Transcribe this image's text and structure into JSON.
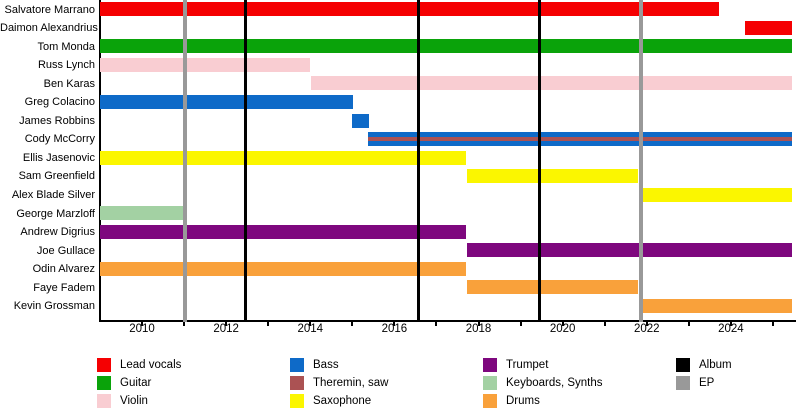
{
  "chart_data": {
    "type": "timeline",
    "description": "Band members timeline (Gantt-style) with instrument color coding and album/EP release lines",
    "x_axis": {
      "min": 2009.0,
      "max": 2025.5,
      "tick_years": [
        2010,
        2011,
        2012,
        2013,
        2014,
        2015,
        2016,
        2017,
        2018,
        2019,
        2020,
        2021,
        2022,
        2023,
        2024,
        2025
      ],
      "label_years": [
        "2010",
        "2012",
        "2014",
        "2016",
        "2018",
        "2020",
        "2022",
        "2024"
      ],
      "grid": false
    },
    "colors": {
      "lead_vocals": "#f50002",
      "guitar": "#0aa30a",
      "violin": "#f9cdd2",
      "bass": "#0e6ac8",
      "theremin_saw": "#ab5253",
      "saxophone": "#fbf600",
      "trumpet": "#7e077e",
      "keyboards_synths": "#a3d1a3",
      "drums": "#f9a13b",
      "album": "#000000",
      "ep": "#999999"
    },
    "members": [
      {
        "name": "Salvatore Marrano",
        "instrument": "Lead vocals",
        "segments": [
          {
            "start": 2009.0,
            "end": 2023.72,
            "colors": [
              "lead_vocals"
            ]
          }
        ]
      },
      {
        "name": "Daimon Alexandrius",
        "instrument": "Lead vocals",
        "segments": [
          {
            "start": 2024.33,
            "end": 2025.45,
            "colors": [
              "lead_vocals"
            ]
          }
        ]
      },
      {
        "name": "Tom Monda",
        "instrument": "Guitar",
        "segments": [
          {
            "start": 2009.0,
            "end": 2025.45,
            "colors": [
              "guitar"
            ]
          }
        ]
      },
      {
        "name": "Russ Lynch",
        "instrument": "Violin",
        "segments": [
          {
            "start": 2009.0,
            "end": 2014.0,
            "colors": [
              "violin"
            ]
          }
        ]
      },
      {
        "name": "Ben Karas",
        "instrument": "Violin",
        "segments": [
          {
            "start": 2014.02,
            "end": 2025.45,
            "colors": [
              "violin"
            ]
          }
        ]
      },
      {
        "name": "Greg Colacino",
        "instrument": "Bass",
        "segments": [
          {
            "start": 2009.0,
            "end": 2015.02,
            "colors": [
              "bass"
            ]
          }
        ]
      },
      {
        "name": "James Robbins",
        "instrument": "Bass",
        "segments": [
          {
            "start": 2015.0,
            "end": 2015.4,
            "colors": [
              "bass"
            ]
          }
        ]
      },
      {
        "name": "Cody McCorry",
        "instrument": "Bass; Theremin, saw",
        "segments": [
          {
            "start": 2015.36,
            "end": 2025.45,
            "colors": [
              "bass",
              "theremin_saw",
              "bass"
            ]
          }
        ]
      },
      {
        "name": "Ellis Jasenovic",
        "instrument": "Saxophone",
        "segments": [
          {
            "start": 2009.0,
            "end": 2017.7,
            "colors": [
              "saxophone"
            ]
          }
        ]
      },
      {
        "name": "Sam Greenfield",
        "instrument": "Saxophone",
        "segments": [
          {
            "start": 2017.73,
            "end": 2021.8,
            "colors": [
              "saxophone"
            ]
          }
        ]
      },
      {
        "name": "Alex Blade Silver",
        "instrument": "Saxophone",
        "segments": [
          {
            "start": 2021.83,
            "end": 2025.45,
            "colors": [
              "saxophone"
            ]
          }
        ]
      },
      {
        "name": "George Marzloff",
        "instrument": "Keyboards, Synths",
        "segments": [
          {
            "start": 2009.0,
            "end": 2011.02,
            "colors": [
              "keyboards_synths"
            ]
          }
        ]
      },
      {
        "name": "Andrew Digrius",
        "instrument": "Trumpet",
        "segments": [
          {
            "start": 2009.0,
            "end": 2017.7,
            "colors": [
              "trumpet"
            ]
          }
        ]
      },
      {
        "name": "Joe Gullace",
        "instrument": "Trumpet",
        "segments": [
          {
            "start": 2017.73,
            "end": 2025.45,
            "colors": [
              "trumpet"
            ]
          }
        ]
      },
      {
        "name": "Odin Alvarez",
        "instrument": "Drums",
        "segments": [
          {
            "start": 2009.0,
            "end": 2017.7,
            "colors": [
              "drums"
            ]
          }
        ]
      },
      {
        "name": "Faye Fadem",
        "instrument": "Drums",
        "segments": [
          {
            "start": 2017.73,
            "end": 2021.8,
            "colors": [
              "drums"
            ]
          }
        ]
      },
      {
        "name": "Kevin Grossman",
        "instrument": "Drums",
        "segments": [
          {
            "start": 2021.83,
            "end": 2025.45,
            "colors": [
              "drums"
            ]
          }
        ]
      }
    ],
    "events": [
      {
        "year": 2011.02,
        "type": "ep"
      },
      {
        "year": 2012.45,
        "type": "album"
      },
      {
        "year": 2016.57,
        "type": "album"
      },
      {
        "year": 2019.46,
        "type": "album"
      },
      {
        "year": 2021.86,
        "type": "ep"
      }
    ],
    "legend": {
      "columns": [
        {
          "items": [
            {
              "label": "Lead vocals",
              "color_key": "lead_vocals"
            },
            {
              "label": "Guitar",
              "color_key": "guitar"
            },
            {
              "label": "Violin",
              "color_key": "violin"
            }
          ]
        },
        {
          "items": [
            {
              "label": "Bass",
              "color_key": "bass"
            },
            {
              "label": "Theremin, saw",
              "color_key": "theremin_saw"
            },
            {
              "label": "Saxophone",
              "color_key": "saxophone"
            }
          ]
        },
        {
          "items": [
            {
              "label": "Trumpet",
              "color_key": "trumpet"
            },
            {
              "label": "Keyboards, Synths",
              "color_key": "keyboards_synths"
            },
            {
              "label": "Drums",
              "color_key": "drums"
            }
          ]
        },
        {
          "items": [
            {
              "label": "Album",
              "color_key": "album"
            },
            {
              "label": "EP",
              "color_key": "ep"
            }
          ]
        }
      ]
    }
  }
}
